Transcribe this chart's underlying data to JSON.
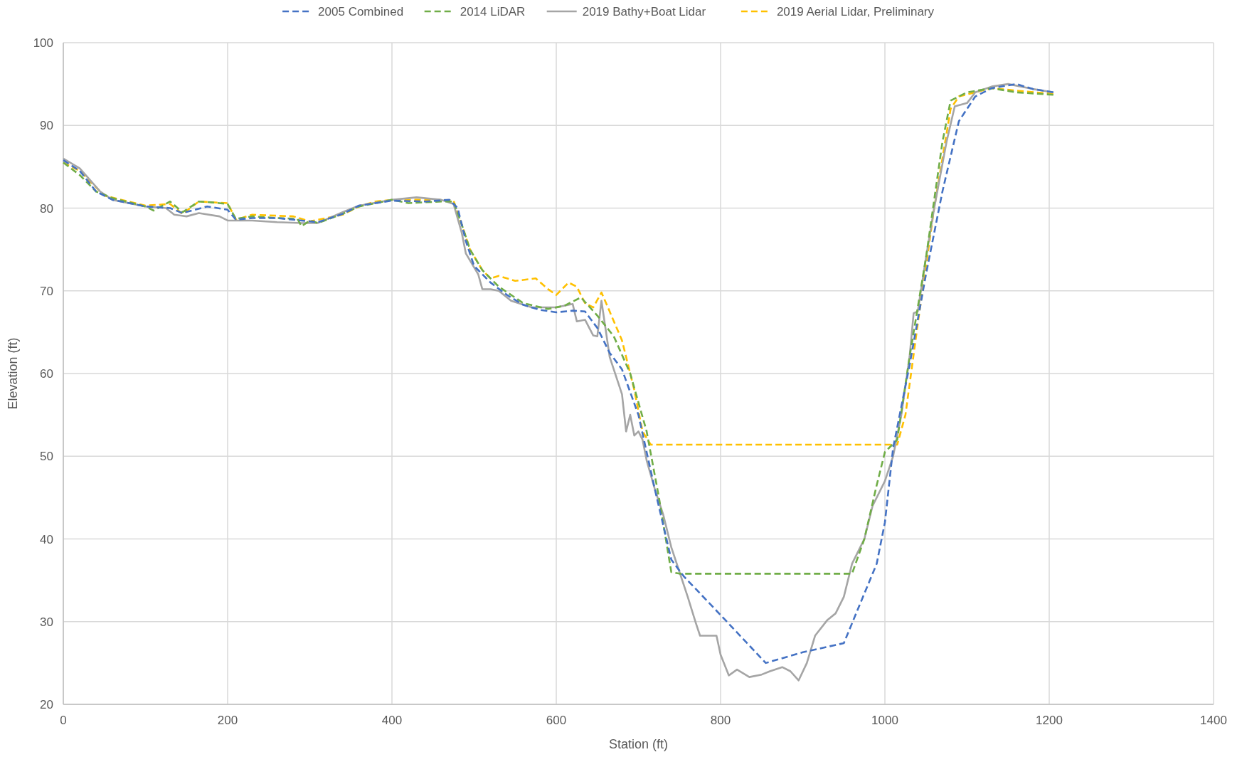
{
  "chart_data": {
    "type": "line",
    "xlabel": "Station (ft)",
    "ylabel": "Elevation (ft)",
    "xlim": [
      0,
      1400
    ],
    "xticks": [
      0,
      200,
      400,
      600,
      800,
      1000,
      1200,
      1400
    ],
    "ylim": [
      20,
      100
    ],
    "yticks": [
      20,
      30,
      40,
      50,
      60,
      70,
      80,
      90,
      100
    ],
    "grid": true,
    "legend": "top",
    "series": [
      {
        "name": "2005 Combined",
        "color": "#4472c4",
        "line_style": "dashed",
        "x": [
          0,
          20,
          40,
          60,
          100,
          130,
          145,
          160,
          175,
          200,
          210,
          230,
          260,
          290,
          310,
          340,
          360,
          400,
          440,
          470,
          480,
          490,
          500,
          520,
          540,
          560,
          580,
          600,
          620,
          635,
          650,
          665,
          680,
          700,
          720,
          740,
          755,
          800,
          855,
          900,
          950,
          990,
          1000,
          1010,
          1030,
          1050,
          1070,
          1090,
          1110,
          1130,
          1160,
          1180,
          1205
        ],
        "values": [
          85.8,
          84.5,
          82,
          81,
          80.2,
          80,
          79.4,
          79.8,
          80.2,
          79.8,
          78.6,
          78.8,
          78.8,
          78.5,
          78.3,
          79.3,
          80.3,
          80.9,
          80.8,
          81,
          80,
          76,
          73,
          71,
          69.5,
          68.3,
          67.7,
          67.4,
          67.6,
          67.5,
          65.5,
          62.5,
          60.5,
          55,
          46,
          37.5,
          35.5,
          30.8,
          25,
          26.3,
          27.4,
          37,
          42,
          51,
          61,
          72,
          82,
          90.5,
          93.5,
          94.5,
          95,
          94.4,
          94
        ]
      },
      {
        "name": "2014 LiDAR",
        "color": "#70ad47",
        "line_style": "dashed",
        "x": [
          0,
          20,
          40,
          60,
          100,
          110,
          130,
          145,
          165,
          180,
          200,
          210,
          230,
          260,
          285,
          290,
          300,
          310,
          340,
          360,
          400,
          420,
          460,
          475,
          485,
          495,
          510,
          530,
          560,
          590,
          610,
          630,
          650,
          670,
          690,
          710,
          725,
          740,
          750,
          850,
          960,
          975,
          990,
          1000,
          1015,
          1030,
          1050,
          1070,
          1080,
          1100,
          1130,
          1160,
          1205
        ],
        "values": [
          85.5,
          84,
          82,
          81.2,
          80.2,
          79.7,
          80.8,
          79.5,
          80.8,
          80.7,
          80.5,
          78.7,
          79,
          78.8,
          78.7,
          77.8,
          78.5,
          78.2,
          79.3,
          80.2,
          81,
          80.6,
          80.8,
          80.8,
          78,
          75,
          72.5,
          70.5,
          68.5,
          67.8,
          68.2,
          69.2,
          67,
          64.5,
          60,
          53,
          45,
          36,
          35.8,
          35.8,
          35.8,
          40,
          46.5,
          50.5,
          52,
          62,
          74,
          88,
          93,
          94,
          94.5,
          94,
          93.7
        ]
      },
      {
        "name": "2019 Bathy+Boat Lidar",
        "color": "#a5a5a5",
        "line_style": "solid",
        "x": [
          0,
          20,
          45,
          60,
          100,
          125,
          135,
          150,
          165,
          190,
          200,
          230,
          260,
          290,
          310,
          340,
          360,
          400,
          430,
          460,
          475,
          485,
          490,
          505,
          510,
          520,
          530,
          545,
          570,
          600,
          620,
          625,
          635,
          645,
          650,
          655,
          665,
          675,
          680,
          685,
          690,
          695,
          700,
          705,
          710,
          720,
          730,
          740,
          750,
          760,
          770,
          775,
          785,
          795,
          800,
          810,
          820,
          835,
          850,
          860,
          875,
          885,
          895,
          905,
          915,
          930,
          940,
          950,
          960,
          975,
          985,
          1000,
          1010,
          1020,
          1030,
          1035,
          1040,
          1050,
          1060,
          1075,
          1085,
          1100,
          1110,
          1130,
          1150,
          1180,
          1205
        ],
        "values": [
          86,
          84.8,
          82,
          81,
          80.2,
          80,
          79.2,
          79,
          79.4,
          79,
          78.5,
          78.5,
          78.3,
          78.2,
          78.2,
          79.5,
          80.3,
          81,
          81.3,
          81,
          80.5,
          77,
          74.5,
          72,
          70.2,
          70.2,
          70,
          68.8,
          68,
          68,
          68.4,
          66.3,
          66.5,
          64.6,
          64.5,
          68.8,
          62,
          59,
          57.5,
          53,
          55,
          52.5,
          53,
          52,
          49.5,
          46,
          43,
          39,
          36,
          33,
          29.8,
          28.3,
          28.3,
          28.3,
          26,
          23.5,
          24.2,
          23.3,
          23.6,
          24,
          24.5,
          24,
          22.9,
          25,
          28.3,
          30.2,
          31,
          33,
          37,
          40,
          44,
          47,
          50,
          55,
          62,
          67.3,
          67.5,
          74,
          80,
          88,
          92.3,
          92.7,
          94,
          94.7,
          95,
          94.4,
          94
        ]
      },
      {
        "name": "2019 Aerial Lidar, Preliminary",
        "color": "#ffc000",
        "line_style": "dashed",
        "x": [
          0,
          20,
          50,
          100,
          130,
          145,
          165,
          200,
          210,
          230,
          280,
          300,
          340,
          360,
          380,
          400,
          460,
          475,
          485,
          495,
          510,
          520,
          530,
          550,
          575,
          590,
          600,
          615,
          625,
          635,
          645,
          655,
          665,
          680,
          695,
          705,
          715,
          800,
          1000,
          1015,
          1025,
          1040,
          1060,
          1080,
          1090,
          1110,
          1130,
          1160,
          1205
        ],
        "values": [
          85.5,
          84.5,
          81.5,
          80.3,
          80.5,
          79.3,
          80.8,
          80.6,
          78.6,
          79.2,
          79,
          78.4,
          79.2,
          80.2,
          80.8,
          81,
          81,
          80.9,
          78,
          75,
          72.5,
          71.5,
          71.8,
          71.2,
          71.5,
          70.2,
          69.5,
          71,
          70.5,
          68.5,
          68,
          69.8,
          67.5,
          64,
          58,
          53,
          51.4,
          51.4,
          51.4,
          51.4,
          55,
          66,
          80,
          92,
          93.5,
          94,
          94.5,
          94.2,
          93.8
        ]
      }
    ]
  }
}
